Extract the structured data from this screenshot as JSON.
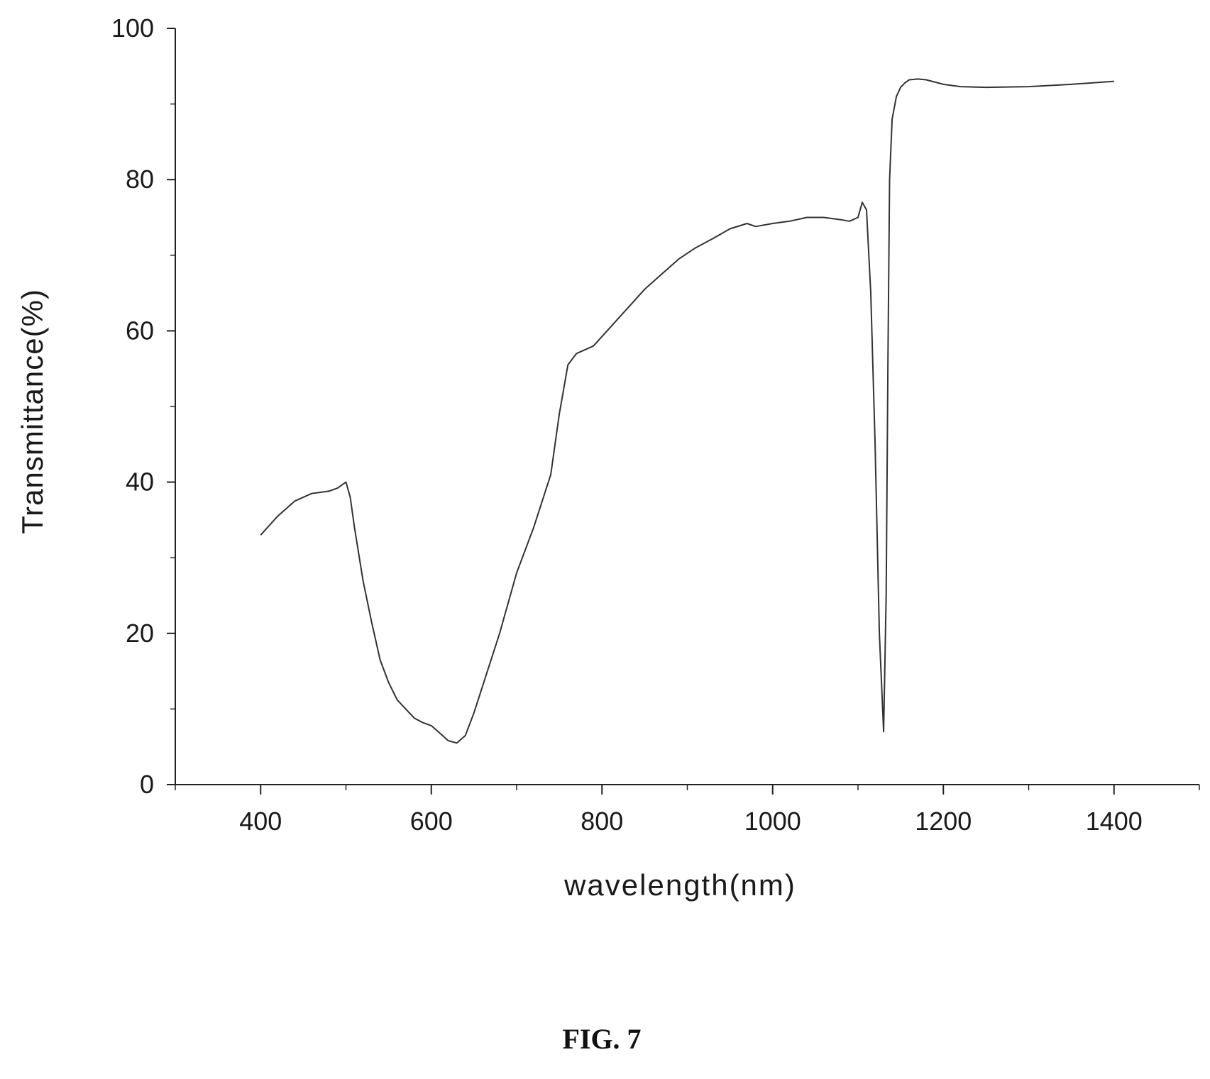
{
  "chart_data": {
    "type": "line",
    "xlabel": "wavelength(nm)",
    "ylabel": "Transmittance(%)",
    "xlim": [
      300,
      1500
    ],
    "ylim": [
      0,
      100
    ],
    "x_ticks": [
      400,
      600,
      800,
      1000,
      1200,
      1400
    ],
    "y_ticks": [
      0,
      20,
      40,
      60,
      80,
      100
    ],
    "grid": false,
    "line_color": "#333333",
    "series": [
      {
        "x": [
          400,
          420,
          440,
          460,
          480,
          490,
          500,
          505,
          510,
          520,
          530,
          540,
          550,
          560,
          570,
          580,
          590,
          600,
          610,
          620,
          630,
          640,
          650,
          660,
          680,
          700,
          720,
          740,
          750,
          760,
          770,
          790,
          810,
          830,
          850,
          870,
          890,
          910,
          930,
          950,
          970,
          980,
          1000,
          1020,
          1040,
          1060,
          1080,
          1090,
          1100,
          1105,
          1110,
          1115,
          1120,
          1125,
          1130,
          1133,
          1135,
          1137,
          1140,
          1145,
          1150,
          1155,
          1160,
          1170,
          1180,
          1200,
          1220,
          1250,
          1300,
          1350,
          1400
        ],
        "y": [
          33,
          35.5,
          37.5,
          38.5,
          38.8,
          39.2,
          40,
          38,
          34,
          27,
          21.5,
          16.5,
          13.5,
          11.2,
          10,
          8.8,
          8.2,
          7.8,
          6.8,
          5.8,
          5.5,
          6.5,
          9.5,
          13,
          20,
          28,
          34,
          41,
          49,
          55.5,
          57,
          58,
          60.5,
          63,
          65.5,
          67.5,
          69.5,
          71,
          72.2,
          73.5,
          74.2,
          73.8,
          74.2,
          74.5,
          75,
          75,
          74.7,
          74.5,
          75,
          77,
          76,
          65,
          45,
          20,
          7,
          25,
          55,
          80,
          88,
          91,
          92.2,
          92.8,
          93.2,
          93.3,
          93.2,
          92.6,
          92.3,
          92.2,
          92.3,
          92.6,
          93
        ]
      }
    ]
  },
  "caption": "FIG. 7"
}
